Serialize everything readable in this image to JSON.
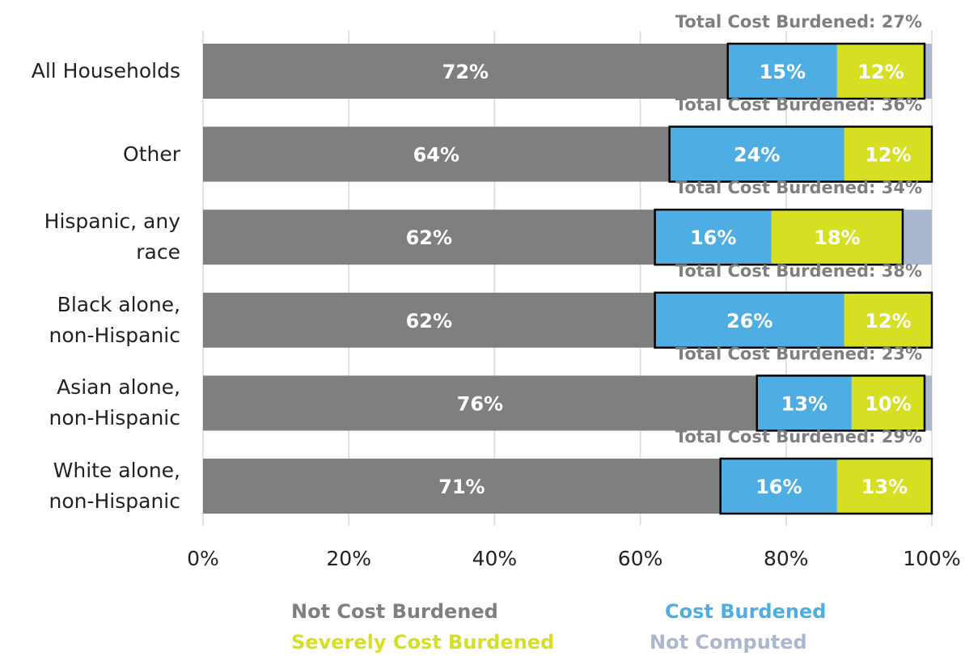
{
  "chart_data": {
    "type": "stacked_barh",
    "categories": [
      "All Households",
      "Other",
      "Hispanic, any\nrace",
      "Black alone,\nnon-Hispanic",
      "Asian alone,\nnon-Hispanic",
      "White alone,\nnon-Hispanic"
    ],
    "series": [
      {
        "name": "Not Cost Burdened",
        "color": "#7f7f7f",
        "values": [
          72,
          64,
          62,
          62,
          76,
          71
        ],
        "value_labels": [
          "72%",
          "64%",
          "62%",
          "62%",
          "76%",
          "71%"
        ]
      },
      {
        "name": "Cost Burdened",
        "color": "#4eaee3",
        "values": [
          15,
          24,
          16,
          26,
          13,
          16
        ],
        "value_labels": [
          "15%",
          "24%",
          "16%",
          "26%",
          "13%",
          "16%"
        ]
      },
      {
        "name": "Severely Cost Burdened",
        "color": "#d7df23",
        "values": [
          12,
          12,
          18,
          12,
          10,
          13
        ],
        "value_labels": [
          "12%",
          "12%",
          "18%",
          "12%",
          "10%",
          "13%"
        ]
      },
      {
        "name": "Not Computed",
        "color": "#aab7cf",
        "values": [
          1,
          0,
          4,
          0,
          1,
          0
        ]
      }
    ],
    "total_labels": [
      "Total Cost Burdened: 27%",
      "Total Cost Burdened: 36%",
      "Total Cost Burdened: 34%",
      "Total Cost Burdened: 38%",
      "Total Cost Burdened: 23%",
      "Total Cost Burdened: 29%"
    ],
    "xlim": [
      0,
      100
    ],
    "xticks": [
      {
        "value": 0,
        "label": "0%"
      },
      {
        "value": 20,
        "label": "20%"
      },
      {
        "value": 40,
        "label": "40%"
      },
      {
        "value": 60,
        "label": "60%"
      },
      {
        "value": 80,
        "label": "80%"
      },
      {
        "value": 100,
        "label": "100%"
      }
    ],
    "grid": true
  }
}
